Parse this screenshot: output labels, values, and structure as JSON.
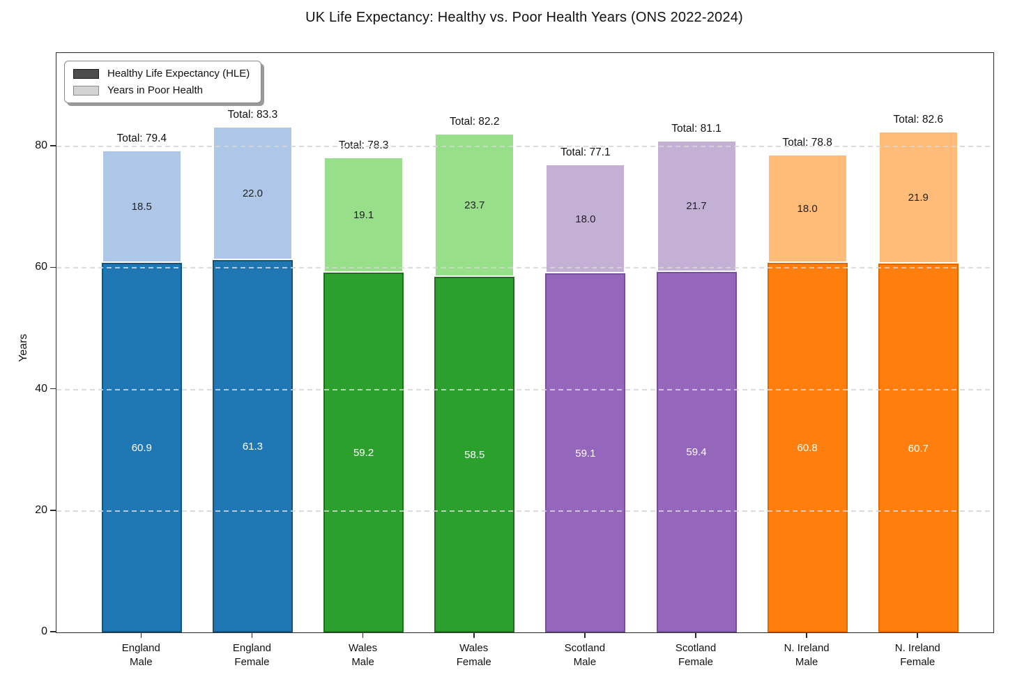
{
  "title": "UK Life Expectancy: Healthy vs. Poor Health Years (ONS 2022-2024)",
  "ylabel": "Years",
  "legend": {
    "items": [
      {
        "label": "Healthy Life Expectancy (HLE)",
        "swatch_color": "#4d4d4d",
        "swatch_edge": "#1a1a1a"
      },
      {
        "label": "Years in Poor Health",
        "swatch_color": "#d3d3d3",
        "swatch_edge": "#8a8a8a"
      }
    ]
  },
  "chart_data": {
    "type": "bar",
    "stacked": true,
    "title": "UK Life Expectancy: Healthy vs. Poor Health Years (ONS 2022-2024)",
    "xlabel": "",
    "ylabel": "Years",
    "categories": [
      "England\nMale",
      "England\nFemale",
      "Wales\nMale",
      "Wales\nFemale",
      "Scotland\nMale",
      "Scotland\nFemale",
      "N. Ireland\nMale",
      "N. Ireland\nFemale"
    ],
    "series": [
      {
        "name": "Healthy Life Expectancy (HLE)",
        "values": [
          60.9,
          61.3,
          59.2,
          58.5,
          59.1,
          59.4,
          60.8,
          60.7
        ],
        "labels": [
          "60.9",
          "61.3",
          "59.2",
          "58.5",
          "59.1",
          "59.4",
          "60.8",
          "60.7"
        ],
        "label_color": "#ffffff"
      },
      {
        "name": "Years in Poor Health",
        "values": [
          18.5,
          22.0,
          19.1,
          23.7,
          18.0,
          21.7,
          18.0,
          21.9
        ],
        "labels": [
          "18.5",
          "22.0",
          "19.1",
          "23.7",
          "18.0",
          "21.7",
          "18.0",
          "21.9"
        ],
        "label_color": "#222222"
      }
    ],
    "totals": [
      79.4,
      83.3,
      78.3,
      82.2,
      77.1,
      81.1,
      78.8,
      82.6
    ],
    "total_labels": [
      "Total: 79.4",
      "Total: 83.3",
      "Total: 78.3",
      "Total: 82.2",
      "Total: 77.1",
      "Total: 81.1",
      "Total: 78.8",
      "Total: 82.6"
    ],
    "bar_colors": [
      {
        "fill": "#1f77b4",
        "edge": "#14537e",
        "light": "#aec7e8"
      },
      {
        "fill": "#1f77b4",
        "edge": "#14537e",
        "light": "#aec7e8"
      },
      {
        "fill": "#2ca02c",
        "edge": "#1e6f1e",
        "light": "#98df8a"
      },
      {
        "fill": "#2ca02c",
        "edge": "#1e6f1e",
        "light": "#98df8a"
      },
      {
        "fill": "#9467bd",
        "edge": "#75519c",
        "light": "#c5b0d5"
      },
      {
        "fill": "#9467bd",
        "edge": "#75519c",
        "light": "#c5b0d5"
      },
      {
        "fill": "#ff7f0e",
        "edge": "#df6a00",
        "light": "#ffbb78"
      },
      {
        "fill": "#ff7f0e",
        "edge": "#df6a00",
        "light": "#ffbb78"
      }
    ],
    "yticks": [
      0,
      20,
      40,
      60,
      80
    ],
    "ytick_labels": [
      "0",
      "20",
      "40",
      "60",
      "80"
    ],
    "ylim": [
      0,
      95.4
    ],
    "grid": "horizontal dashed",
    "legend_position": "upper left"
  }
}
